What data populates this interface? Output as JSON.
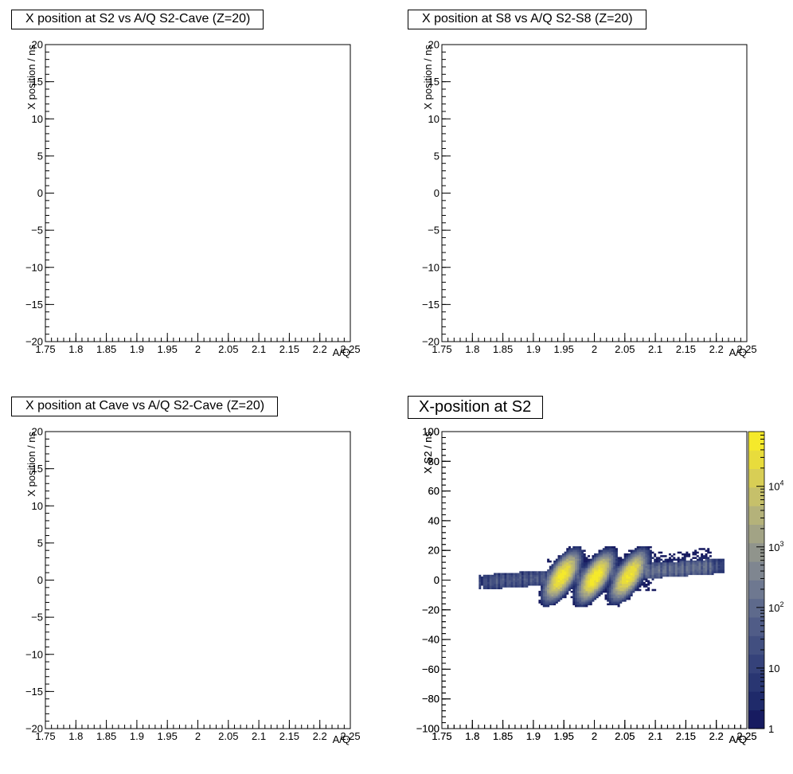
{
  "chart_data": [
    {
      "type": "heatmap",
      "title": "X position at S2 vs A/Q S2-Cave (Z=20)",
      "xlabel": "A/Q",
      "ylabel": "X position / ns",
      "xlim": [
        1.75,
        2.25
      ],
      "ylim": [
        -20,
        20
      ],
      "xticks": [
        "1.75",
        "1.8",
        "1.85",
        "1.9",
        "1.95",
        "2",
        "2.05",
        "2.1",
        "2.15",
        "2.2",
        "2.25"
      ],
      "yticks": [
        "−20",
        "−15",
        "−10",
        "−5",
        "0",
        "5",
        "10",
        "15",
        "20"
      ],
      "entries": []
    },
    {
      "type": "heatmap",
      "title": "X position at S8 vs A/Q S2-S8 (Z=20)",
      "xlabel": "A/Q",
      "ylabel": "X position / ns",
      "xlim": [
        1.75,
        2.25
      ],
      "ylim": [
        -20,
        20
      ],
      "xticks": [
        "1.75",
        "1.8",
        "1.85",
        "1.9",
        "1.95",
        "2",
        "2.05",
        "2.1",
        "2.15",
        "2.2",
        "2.25"
      ],
      "yticks": [
        "−20",
        "−15",
        "−10",
        "−5",
        "0",
        "5",
        "10",
        "15",
        "20"
      ],
      "entries": []
    },
    {
      "type": "heatmap",
      "title": "X position at Cave vs A/Q S2-Cave (Z=20)",
      "xlabel": "A/Q",
      "ylabel": "X position / ns",
      "xlim": [
        1.75,
        2.25
      ],
      "ylim": [
        -20,
        20
      ],
      "xticks": [
        "1.75",
        "1.8",
        "1.85",
        "1.9",
        "1.95",
        "2",
        "2.05",
        "2.1",
        "2.15",
        "2.2",
        "2.25"
      ],
      "yticks": [
        "−20",
        "−15",
        "−10",
        "−5",
        "0",
        "5",
        "10",
        "15",
        "20"
      ],
      "entries": []
    },
    {
      "type": "heatmap",
      "title": "X-position at S2",
      "xlabel": "A/Q",
      "ylabel": "X S2 / ns",
      "xlim": [
        1.75,
        2.25
      ],
      "ylim": [
        -100,
        100
      ],
      "xticks": [
        "1.75",
        "1.8",
        "1.85",
        "1.9",
        "1.95",
        "2",
        "2.05",
        "2.1",
        "2.15",
        "2.2",
        "2.25"
      ],
      "yticks": [
        "−100",
        "−80",
        "−60",
        "−40",
        "−20",
        "0",
        "20",
        "40",
        "60",
        "80",
        "100"
      ],
      "zscale": "log",
      "zlim": [
        1,
        80000
      ],
      "zticks": [
        {
          "value": 1,
          "base": "1",
          "exp": ""
        },
        {
          "value": 10,
          "base": "10",
          "exp": ""
        },
        {
          "value": 100,
          "base": "10",
          "exp": "2"
        },
        {
          "value": 1000,
          "base": "10",
          "exp": "3"
        },
        {
          "value": 10000,
          "base": "10",
          "exp": "4"
        }
      ],
      "palette": [
        "#171b60",
        "#1f2a6a",
        "#293672",
        "#35427a",
        "#424f80",
        "#505c87",
        "#5e6a8c",
        "#6e7890",
        "#7f8690",
        "#90948c",
        "#a2a385",
        "#b4b27a",
        "#c6c06a",
        "#d8ce55",
        "#e8dc3c",
        "#f5e92b"
      ],
      "band": {
        "x_start": 1.81,
        "x_end": 2.21,
        "y_center_start": -2,
        "y_center_end": 9,
        "half_width": 4
      },
      "upper_halo": {
        "x_start": 1.92,
        "x_end": 2.19,
        "y_max": 21
      },
      "lower_tail": {
        "x_start": 1.93,
        "x_end": 2.1,
        "y_min": -16
      },
      "peaks": [
        {
          "x": 1.945,
          "y": 2,
          "z": 60000
        },
        {
          "x": 2.0,
          "y": 1.5,
          "z": 70000
        },
        {
          "x": 2.055,
          "y": 2.5,
          "z": 50000
        }
      ]
    }
  ]
}
